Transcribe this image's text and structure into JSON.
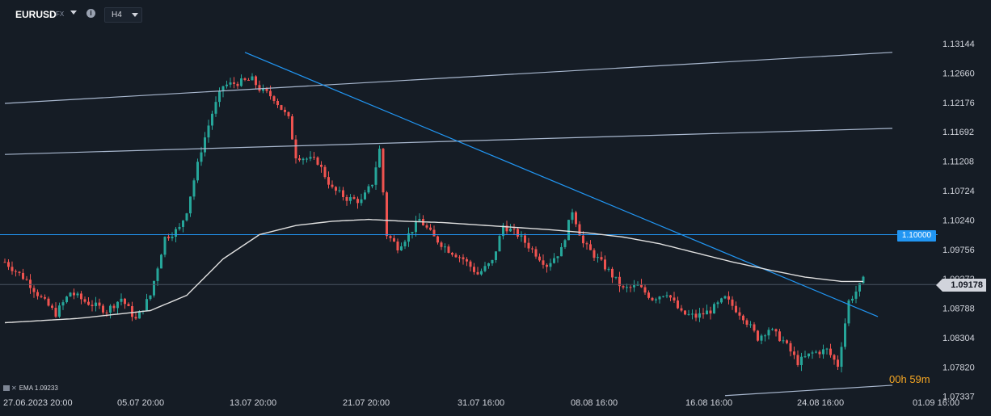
{
  "header": {
    "symbol": "EURUSD",
    "market": "FX",
    "info_icon": "info-icon",
    "timeframe": "H4"
  },
  "legend": {
    "indicator_label": "EMA",
    "indicator_value": "1.09233"
  },
  "timer": {
    "hours": "00h",
    "minutes": "59m"
  },
  "price_labels": {
    "horizontal_level": "1.10000",
    "current_price": "1.09178"
  },
  "colors": {
    "background": "#151c25",
    "up_candle": "#26a69a",
    "down_candle": "#ef5350",
    "trendline": "#2196f3",
    "channel_line": "#a9b8cf",
    "ema_line": "#e0e0e0",
    "timer": "#f5a623"
  },
  "chart_data": {
    "type": "candlestick",
    "ylim": [
      1.0733,
      1.1335
    ],
    "y_ticks": [
      "1.13144",
      "1.12660",
      "1.12176",
      "1.11692",
      "1.11208",
      "1.10724",
      "1.10240",
      "1.09756",
      "1.09272",
      "1.08788",
      "1.08304",
      "1.07820",
      "1.07337"
    ],
    "x_tick_labels": [
      "27.06.2023  20:00",
      "05.07  20:00",
      "13.07  20:00",
      "21.07  20:00",
      "31.07  16:00",
      "08.08  16:00",
      "16.08  16:00",
      "24.08  16:00",
      "01.09  16:00"
    ],
    "close_path": [
      [
        0,
        1.0955
      ],
      [
        6,
        1.0925
      ],
      [
        10,
        1.0895
      ],
      [
        14,
        1.087
      ],
      [
        18,
        1.0905
      ],
      [
        22,
        1.089
      ],
      [
        28,
        1.0875
      ],
      [
        32,
        1.0895
      ],
      [
        36,
        1.086
      ],
      [
        40,
        1.09
      ],
      [
        44,
        1.0995
      ],
      [
        48,
        1.101
      ],
      [
        50,
        1.104
      ],
      [
        54,
        1.114
      ],
      [
        57,
        1.12
      ],
      [
        60,
        1.1245
      ],
      [
        64,
        1.125
      ],
      [
        68,
        1.1255
      ],
      [
        70,
        1.124
      ],
      [
        74,
        1.1225
      ],
      [
        78,
        1.119
      ],
      [
        80,
        1.113
      ],
      [
        83,
        1.1125
      ],
      [
        86,
        1.112
      ],
      [
        90,
        1.1075
      ],
      [
        94,
        1.106
      ],
      [
        98,
        1.1055
      ],
      [
        101,
        1.1085
      ],
      [
        103,
        1.114
      ],
      [
        105,
        1.1
      ],
      [
        108,
        1.098
      ],
      [
        111,
        1.1
      ],
      [
        114,
        1.1025
      ],
      [
        118,
        1.0995
      ],
      [
        122,
        1.0975
      ],
      [
        126,
        1.096
      ],
      [
        130,
        1.0935
      ],
      [
        134,
        1.0955
      ],
      [
        137,
        1.1015
      ],
      [
        141,
        1.1
      ],
      [
        145,
        1.0975
      ],
      [
        149,
        1.095
      ],
      [
        153,
        1.0975
      ],
      [
        156,
        1.104
      ],
      [
        159,
        1.0985
      ],
      [
        163,
        1.096
      ],
      [
        166,
        1.094
      ],
      [
        170,
        1.091
      ],
      [
        174,
        1.0915
      ],
      [
        178,
        1.0895
      ],
      [
        182,
        1.0905
      ],
      [
        186,
        1.087
      ],
      [
        190,
        1.0865
      ],
      [
        194,
        1.0875
      ],
      [
        198,
        1.0895
      ],
      [
        203,
        1.0865
      ],
      [
        207,
        1.083
      ],
      [
        210,
        1.0845
      ],
      [
        214,
        1.0825
      ],
      [
        218,
        1.079
      ],
      [
        222,
        1.0805
      ],
      [
        226,
        1.081
      ],
      [
        229,
        1.0785
      ],
      [
        232,
        1.089
      ],
      [
        235,
        1.0915
      ],
      [
        236,
        1.0925
      ]
    ],
    "ema_path": [
      [
        0,
        1.0855
      ],
      [
        20,
        1.0862
      ],
      [
        40,
        1.0875
      ],
      [
        50,
        1.09
      ],
      [
        60,
        1.096
      ],
      [
        70,
        1.1
      ],
      [
        80,
        1.1015
      ],
      [
        90,
        1.1022
      ],
      [
        100,
        1.1025
      ],
      [
        110,
        1.1022
      ],
      [
        120,
        1.102
      ],
      [
        130,
        1.1016
      ],
      [
        140,
        1.1012
      ],
      [
        150,
        1.1008
      ],
      [
        160,
        1.1003
      ],
      [
        170,
        1.0996
      ],
      [
        180,
        1.0985
      ],
      [
        190,
        1.097
      ],
      [
        200,
        1.0955
      ],
      [
        210,
        1.0942
      ],
      [
        220,
        1.093
      ],
      [
        230,
        1.0923
      ],
      [
        236,
        1.0923
      ]
    ],
    "ema_value": 1.09233,
    "horizontal_level": 1.1,
    "current_price": 1.09178,
    "trendlines": [
      {
        "name": "channel-upper",
        "from": [
          0,
          1.1216
        ],
        "to": [
          244,
          1.13
        ]
      },
      {
        "name": "channel-lower",
        "from": [
          0,
          1.1132
        ],
        "to": [
          244,
          1.1175
        ]
      },
      {
        "name": "downtrend",
        "from": [
          66,
          1.13
        ],
        "to": [
          240,
          1.0865
        ]
      },
      {
        "name": "support-bottom",
        "from": [
          198,
          1.0735
        ],
        "to": [
          244,
          1.0752
        ]
      }
    ],
    "grid": false
  }
}
